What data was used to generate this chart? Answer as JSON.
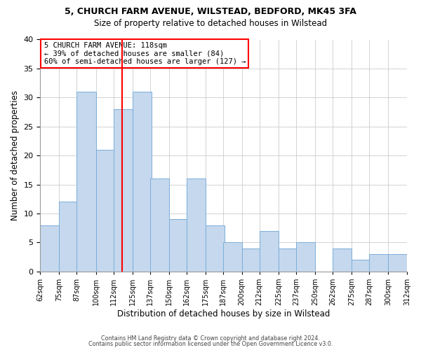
{
  "title1": "5, CHURCH FARM AVENUE, WILSTEAD, BEDFORD, MK45 3FA",
  "title2": "Size of property relative to detached houses in Wilstead",
  "xlabel": "Distribution of detached houses by size in Wilstead",
  "ylabel": "Number of detached properties",
  "bar_left_edges": [
    62,
    75,
    87,
    100,
    112,
    125,
    137,
    150,
    162,
    175,
    187,
    200,
    212,
    225,
    237,
    250,
    262,
    275,
    287,
    300
  ],
  "bar_heights": [
    8,
    12,
    31,
    21,
    28,
    31,
    16,
    9,
    16,
    8,
    5,
    4,
    7,
    4,
    5,
    0,
    4,
    2,
    3,
    3
  ],
  "bin_width": 13,
  "tick_labels": [
    "62sqm",
    "75sqm",
    "87sqm",
    "100sqm",
    "112sqm",
    "125sqm",
    "137sqm",
    "150sqm",
    "162sqm",
    "175sqm",
    "187sqm",
    "200sqm",
    "212sqm",
    "225sqm",
    "237sqm",
    "250sqm",
    "262sqm",
    "275sqm",
    "287sqm",
    "300sqm",
    "312sqm"
  ],
  "bar_color": "#c5d8ed",
  "bar_edge_color": "#7aadda",
  "vline_x": 118,
  "vline_color": "red",
  "ylim": [
    0,
    40
  ],
  "yticks": [
    0,
    5,
    10,
    15,
    20,
    25,
    30,
    35,
    40
  ],
  "annotation_lines": [
    "5 CHURCH FARM AVENUE: 118sqm",
    "← 39% of detached houses are smaller (84)",
    "60% of semi-detached houses are larger (127) →"
  ],
  "footer1": "Contains HM Land Registry data © Crown copyright and database right 2024.",
  "footer2": "Contains public sector information licensed under the Open Government Licence v3.0.",
  "background_color": "#ffffff",
  "grid_color": "#cccccc"
}
